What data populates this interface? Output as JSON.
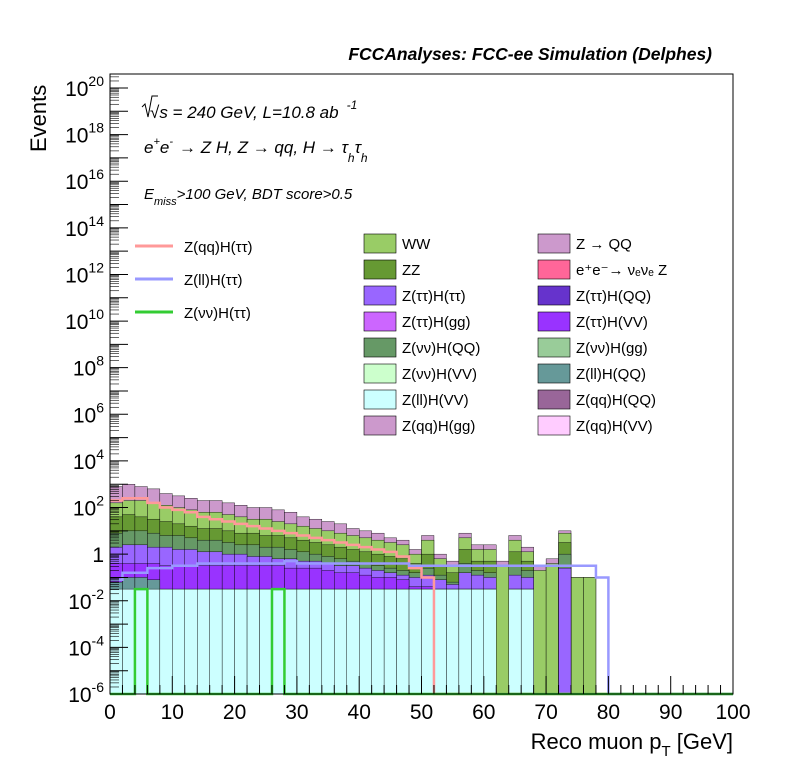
{
  "chart_data": {
    "type": "bar",
    "title": "FCCAnalyses: FCC-ee Simulation (Delphes)",
    "annotations": {
      "energy_prefix": "√s = 240 GeV, L=10.8 ab",
      "energy_sup": "-1",
      "process_main": "e",
      "process_sup1": "+",
      "process_e2": "e",
      "process_sup2": "-",
      "process_arrow": "→ Z H, Z  → qq, H  → τ",
      "process_sub1": "h",
      "process_tau2": "τ",
      "process_sub2": "h",
      "cut_e": "E",
      "cut_sub": "miss",
      "cut_rest": ">100 GeV, BDT score>0.5"
    },
    "xlabel": "Reco muon p",
    "xlabel_sub": "T",
    "xlabel_unit": " [GeV]",
    "ylabel": "Events",
    "xlim": [
      0,
      100
    ],
    "ylim_log10": [
      -6,
      20.6
    ],
    "y_scale": "log",
    "x_ticks": [
      "0",
      "10",
      "20",
      "30",
      "40",
      "50",
      "60",
      "70",
      "80",
      "90",
      "100"
    ],
    "y_ticks": [
      {
        "text": "10",
        "exp": "-6",
        "log": -6
      },
      {
        "text": "10",
        "exp": "-4",
        "log": -4
      },
      {
        "text": "10",
        "exp": "-2",
        "log": -2
      },
      {
        "text": "1",
        "exp": "",
        "log": 0
      },
      {
        "text": "10",
        "exp": "2",
        "log": 2
      },
      {
        "text": "10",
        "exp": "4",
        "log": 4
      },
      {
        "text": "10",
        "exp": "6",
        "log": 6
      },
      {
        "text": "10",
        "exp": "8",
        "log": 8
      },
      {
        "text": "10",
        "exp": "10",
        "log": 10
      },
      {
        "text": "10",
        "exp": "12",
        "log": 12
      },
      {
        "text": "10",
        "exp": "14",
        "log": 14
      },
      {
        "text": "10",
        "exp": "16",
        "log": 16
      },
      {
        "text": "10",
        "exp": "18",
        "log": 18
      },
      {
        "text": "10",
        "exp": "20",
        "log": 20
      }
    ],
    "bin_width": 2,
    "stack_total_log10": [
      2.9,
      3.0,
      2.9,
      2.8,
      2.6,
      2.5,
      2.4,
      2.3,
      2.3,
      2.2,
      2.1,
      2.0,
      2.0,
      1.9,
      1.8,
      1.6,
      1.5,
      1.4,
      1.3,
      1.1,
      1.0,
      0.9,
      0.7,
      0.6,
      0.2,
      0.8,
      0.0,
      -0.3,
      0.9,
      0.4,
      0.4,
      -0.3,
      0.8,
      0.3,
      -0.5,
      -0.2,
      1.0,
      -1.0,
      -1.0,
      -6,
      -6,
      -6,
      -6,
      -6,
      -6,
      -6,
      -6,
      -6,
      -6,
      -6
    ],
    "stack_levels": [
      {
        "name": "Z(ll)H(VV)",
        "color": "#ccffff",
        "log10": [
          -1.5,
          -1.5,
          -1.5,
          -1.5,
          -1.5,
          -1.5,
          -1.5,
          -1.5,
          -1.5,
          -1.5,
          -1.5,
          -1.5,
          -1.5,
          -1.5,
          -1.5,
          -1.5,
          -1.5,
          -1.5,
          -1.5,
          -1.5,
          -1.5,
          -1.5,
          -1.5,
          -1.5,
          -1.5,
          -1.5,
          -1.5,
          -1.5,
          -1.5,
          -1.5,
          -1.5,
          -6,
          -1.5,
          -1.5,
          -6,
          -6,
          -6,
          -6,
          -6,
          -6,
          -6,
          -6,
          -6,
          -6,
          -6,
          -6,
          -6,
          -6,
          -6,
          -6
        ]
      },
      {
        "name": "Z(ll)H(QQ)",
        "color": "#669999",
        "log10": [
          -1.2,
          -1.0,
          -1.0,
          -1.1,
          -1.5,
          -1.5,
          -1.5,
          -1.5,
          -1.5,
          -1.5,
          -1.5,
          -1.5,
          -1.5,
          -1.5,
          -1.5,
          -1.5,
          -1.5,
          -1.5,
          -1.5,
          -1.5,
          -1.5,
          -1.5,
          -1.5,
          -1.5,
          -1.5,
          -1.5,
          -1.5,
          -1.5,
          -1.5,
          -1.5,
          -1.5,
          -6,
          -1.5,
          -1.5,
          -6,
          -6,
          -6,
          -6,
          -6,
          -6,
          -6,
          -6,
          -6,
          -6,
          -6,
          -6,
          -6,
          -6,
          -6,
          -6
        ]
      },
      {
        "name": "Z(ττ)H(VV)",
        "color": "#9933ff",
        "log10": [
          -0.4,
          -0.4,
          -0.4,
          -0.4,
          -0.5,
          -0.5,
          -0.5,
          -0.5,
          -0.5,
          -0.5,
          -0.5,
          -0.5,
          -0.5,
          -0.5,
          -0.6,
          -0.6,
          -0.6,
          -0.7,
          -0.8,
          -0.8,
          -0.9,
          -1.0,
          -1.0,
          -1.1,
          -1.4,
          -1.4,
          -1.5,
          -1.5,
          -1.5,
          -1.5,
          -1.5,
          -6,
          -1.5,
          -1.5,
          -6,
          -6,
          -6,
          -6,
          -6,
          -6,
          -6,
          -6,
          -6,
          -6,
          -6,
          -6,
          -6,
          -6,
          -6,
          -6
        ]
      },
      {
        "name": "Z(ττ)H(ττ)",
        "color": "#9966ff",
        "log10": [
          0.3,
          0.4,
          0.4,
          0.3,
          0.3,
          0.2,
          0.2,
          0.1,
          0.1,
          0.0,
          0.0,
          -0.1,
          -0.1,
          -0.2,
          -0.2,
          -0.3,
          -0.3,
          -0.4,
          -0.5,
          -0.5,
          -0.6,
          -0.7,
          -0.8,
          -0.9,
          -1.0,
          -0.9,
          -1.1,
          -1.3,
          -0.8,
          -0.9,
          -1.0,
          -6,
          -0.9,
          -1.0,
          -6,
          -6,
          -0.6,
          -6,
          -6,
          -6,
          -6,
          -6,
          -6,
          -6,
          -6,
          -6,
          -6,
          -6,
          -6,
          -6
        ]
      },
      {
        "name": "Z(νν)H(QQ)",
        "color": "#669966",
        "log10": [
          0.9,
          1.0,
          1.0,
          0.9,
          0.8,
          0.8,
          0.7,
          0.6,
          0.6,
          0.5,
          0.4,
          0.4,
          0.3,
          0.3,
          0.2,
          0.1,
          0.0,
          -0.1,
          -0.2,
          -0.3,
          -0.4,
          -0.5,
          -0.6,
          -0.7,
          -0.8,
          -0.6,
          -0.9,
          -1.2,
          -0.4,
          -0.7,
          -0.8,
          -6,
          -0.5,
          -0.7,
          -6,
          -6,
          0.0,
          -6,
          -6,
          -6,
          -6,
          -6,
          -6,
          -6,
          -6,
          -6,
          -6,
          -6,
          -6,
          -6
        ]
      },
      {
        "name": "ZZ",
        "color": "#669933",
        "log10": [
          1.6,
          1.7,
          1.6,
          1.5,
          1.4,
          1.3,
          1.2,
          1.1,
          1.1,
          1.0,
          0.9,
          0.9,
          0.8,
          0.8,
          0.7,
          0.6,
          0.5,
          0.4,
          0.3,
          0.2,
          0.1,
          0.0,
          -0.1,
          -0.2,
          -0.4,
          0.0,
          -0.5,
          -0.8,
          0.2,
          -0.3,
          -0.3,
          -6,
          0.1,
          -0.3,
          -6,
          -6,
          0.5,
          -6,
          -6,
          -6,
          -6,
          -6,
          -6,
          -6,
          -6,
          -6,
          -6,
          -6,
          -6,
          -6
        ]
      },
      {
        "name": "WW",
        "color": "#99cc66",
        "log10": [
          2.2,
          2.3,
          2.3,
          2.2,
          2.1,
          2.0,
          1.9,
          1.8,
          1.8,
          1.7,
          1.6,
          1.5,
          1.5,
          1.4,
          1.3,
          1.2,
          1.1,
          1.0,
          0.9,
          0.8,
          0.7,
          0.6,
          0.5,
          0.4,
          0.0,
          0.6,
          -0.2,
          -0.5,
          0.7,
          0.2,
          0.2,
          -0.5,
          0.6,
          0.1,
          -0.7,
          -0.4,
          0.9,
          -1.0,
          -1.0,
          -6,
          -6,
          -6,
          -6,
          -6,
          -6,
          -6,
          -6,
          -6,
          -6,
          -6
        ]
      }
    ],
    "series": [
      {
        "name": "Z(qq)H(ττ)",
        "color": "#ff9999",
        "log10": [
          2.3,
          2.4,
          2.4,
          2.2,
          2.0,
          1.9,
          1.8,
          1.6,
          1.5,
          1.4,
          1.3,
          1.2,
          1.1,
          1.0,
          0.9,
          0.8,
          0.7,
          0.6,
          0.5,
          0.4,
          0.3,
          0.2,
          0.1,
          -0.1,
          -0.6,
          -1.0,
          -6,
          -6,
          -6,
          -6,
          -6,
          -6,
          -6,
          -6,
          -6,
          -6,
          -6,
          -6,
          -6,
          -6,
          -6,
          -6,
          -6,
          -6,
          -6,
          -6,
          -6,
          -6,
          -6,
          -6
        ]
      },
      {
        "name": "Z(ll)H(ττ)",
        "color": "#9999ff",
        "log10": [
          -1.1,
          -0.8,
          -0.8,
          -0.6,
          -0.6,
          -0.5,
          -0.5,
          -0.4,
          -0.4,
          -0.4,
          -0.4,
          -0.4,
          -0.4,
          -0.4,
          -0.3,
          -0.4,
          -0.4,
          -0.4,
          -0.4,
          -0.4,
          -0.4,
          -0.4,
          -0.4,
          -0.4,
          -0.5,
          -0.5,
          -0.5,
          -0.5,
          -0.5,
          -0.5,
          -0.5,
          -0.5,
          -0.5,
          -0.5,
          -0.5,
          -0.5,
          -0.5,
          -0.5,
          -0.5,
          -1.0,
          -6,
          -6,
          -6,
          -6,
          -6,
          -6,
          -6,
          -6,
          -6,
          -6
        ]
      },
      {
        "name": "Z(νν)H(ττ)",
        "color": "#33cc33",
        "log10": [
          -6,
          -6,
          -1.5,
          -6,
          -6,
          -6,
          -6,
          -6,
          -6,
          -6,
          -6,
          -6,
          -6,
          -1.5,
          -6,
          -6,
          -6,
          -6,
          -6,
          -6,
          -6,
          -6,
          -6,
          -6,
          -6,
          -6,
          -6,
          -6,
          -6,
          -6,
          -6,
          -6,
          -6,
          -6,
          -6,
          -6,
          -6,
          -6,
          -6,
          -6,
          -6,
          -6,
          -6,
          -6,
          -6,
          -6,
          -6,
          -6,
          -6,
          -6
        ]
      }
    ],
    "legend_position": "top",
    "legend_lines": [
      {
        "label": "Z(qq)H(ττ)",
        "color": "#ff9999"
      },
      {
        "label": "Z(ll)H(ττ)",
        "color": "#9999ff"
      },
      {
        "label": "Z(νν)H(ττ)",
        "color": "#33cc33"
      }
    ],
    "legend_boxes": [
      {
        "label": "WW",
        "color": "#99cc66"
      },
      {
        "label": "Z → QQ",
        "color": "#cc99cc"
      },
      {
        "label": "ZZ",
        "color": "#669933"
      },
      {
        "label": "e⁺e⁻→ νₑνₑ Z",
        "color": "#ff6699"
      },
      {
        "label": "Z(ττ)H(ττ)",
        "color": "#9966ff"
      },
      {
        "label": "Z(ττ)H(QQ)",
        "color": "#6633cc"
      },
      {
        "label": "Z(ττ)H(gg)",
        "color": "#cc66ff"
      },
      {
        "label": "Z(ττ)H(VV)",
        "color": "#9933ff"
      },
      {
        "label": "Z(νν)H(QQ)",
        "color": "#669966"
      },
      {
        "label": "Z(νν)H(gg)",
        "color": "#99cc99"
      },
      {
        "label": "Z(νν)H(VV)",
        "color": "#ccffcc"
      },
      {
        "label": "Z(ll)H(QQ)",
        "color": "#669999"
      },
      {
        "label": "Z(ll)H(VV)",
        "color": "#ccffff"
      },
      {
        "label": "Z(qq)H(QQ)",
        "color": "#996699"
      },
      {
        "label": "Z(qq)H(gg)",
        "color": "#cc99cc"
      },
      {
        "label": "Z(qq)H(VV)",
        "color": "#ffccff"
      }
    ],
    "grid": false
  }
}
